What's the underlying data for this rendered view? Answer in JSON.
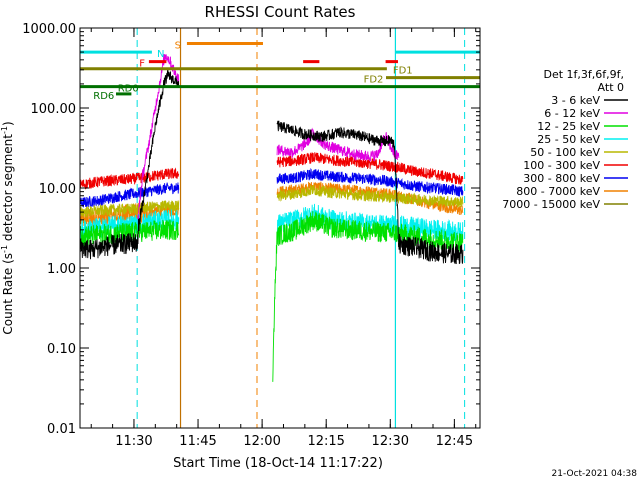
{
  "chart_data": {
    "type": "line",
    "title": "RHESSI Count Rates",
    "xlabel": "Start Time (18-Oct-14 11:17:22)",
    "ylabel_main": "Count Rate (s",
    "ylabel_sup1": "-1",
    "ylabel_mid": " detector segment",
    "ylabel_sup2": "-1",
    "ylabel_end": ")",
    "scale": "log",
    "xlim_minutes": [
      677.37,
      771.0
    ],
    "ylim": [
      0.01,
      1000
    ],
    "x_ticks": [
      {
        "label": "11:30",
        "minutes": 690
      },
      {
        "label": "11:45",
        "minutes": 705
      },
      {
        "label": "12:00",
        "minutes": 720
      },
      {
        "label": "12:15",
        "minutes": 735
      },
      {
        "label": "12:30",
        "minutes": 750
      },
      {
        "label": "12:45",
        "minutes": 765
      }
    ],
    "y_ticks": [
      {
        "label": "1000.00",
        "value": 1000
      },
      {
        "label": "100.00",
        "value": 100
      },
      {
        "label": "10.00",
        "value": 10
      },
      {
        "label": "1.00",
        "value": 1
      },
      {
        "label": "0.10",
        "value": 0.1
      },
      {
        "label": "0.01",
        "value": 0.01
      }
    ],
    "legend": {
      "header": [
        "Det 1f,3f,6f,9f,",
        "Att 0"
      ],
      "placement": "right",
      "entries": [
        {
          "label": "3 - 6 keV",
          "color": "#000000"
        },
        {
          "label": "6 - 12 keV",
          "color": "#e000e0"
        },
        {
          "label": "12 - 25 keV",
          "color": "#00e000"
        },
        {
          "label": "25 - 50 keV",
          "color": "#00f0f0"
        },
        {
          "label": "50 - 100 keV",
          "color": "#b8b800"
        },
        {
          "label": "100 - 300 keV",
          "color": "#f00000"
        },
        {
          "label": "300 - 800 keV",
          "color": "#0000f0"
        },
        {
          "label": "800 - 7000 keV",
          "color": "#f08000"
        },
        {
          "label": "7000 - 15000 keV",
          "color": "#808000"
        }
      ]
    },
    "series": [
      {
        "name": "3 - 6 keV",
        "color": "#000000",
        "segments": [
          [
            [
              677.5,
              1.8
            ],
            [
              680,
              1.7
            ],
            [
              684,
              1.9
            ],
            [
              688,
              2.0
            ],
            [
              690,
              2.1
            ],
            [
              690.8,
              2.0
            ],
            [
              691,
              3.0
            ],
            [
              693,
              13
            ],
            [
              695,
              60
            ],
            [
              697,
              200
            ],
            [
              698,
              260
            ],
            [
              699.5,
              220
            ],
            [
              700.5,
              200
            ]
          ],
          [
            [
              723.5,
              60
            ],
            [
              726,
              55
            ],
            [
              730,
              47
            ],
            [
              734,
              44
            ],
            [
              736,
              46
            ],
            [
              738,
              50
            ],
            [
              742,
              46
            ],
            [
              746,
              40
            ],
            [
              749,
              38
            ],
            [
              750,
              40
            ],
            [
              751,
              34
            ],
            [
              752,
              2.0
            ],
            [
              756,
              1.8
            ],
            [
              760,
              1.6
            ],
            [
              764,
              1.5
            ],
            [
              767,
              1.5
            ]
          ]
        ]
      },
      {
        "name": "6 - 12 keV",
        "color": "#e000e0",
        "segments": [
          [
            [
              690.8,
              3.5
            ],
            [
              692,
              14
            ],
            [
              694,
              50
            ],
            [
              696,
              200
            ],
            [
              697,
              400
            ],
            [
              697.5,
              460
            ],
            [
              698.5,
              380
            ],
            [
              699,
              330
            ],
            [
              699.5,
              280
            ],
            [
              700.5,
              230
            ]
          ],
          [
            [
              723.5,
              30
            ],
            [
              727,
              28
            ],
            [
              729,
              32
            ],
            [
              731,
              40
            ],
            [
              732,
              52
            ],
            [
              733,
              42
            ],
            [
              735,
              34
            ],
            [
              738,
              30
            ],
            [
              742,
              26
            ],
            [
              745,
              25
            ],
            [
              747,
              26
            ],
            [
              748,
              36
            ],
            [
              749,
              44
            ],
            [
              749.7,
              36
            ],
            [
              750.5,
              30
            ],
            [
              751,
              26
            ],
            [
              752,
              25
            ]
          ]
        ]
      },
      {
        "name": "12 - 25 keV",
        "color": "#00e000",
        "segments": [
          [
            [
              677.5,
              2.5
            ],
            [
              682,
              2.6
            ],
            [
              686,
              2.7
            ],
            [
              690,
              2.8
            ],
            [
              694,
              2.9
            ],
            [
              698,
              3.0
            ],
            [
              700.5,
              3.0
            ]
          ],
          [
            [
              722.5,
              0.05
            ],
            [
              723,
              0.5
            ],
            [
              723.5,
              2.5
            ],
            [
              728,
              3.0
            ],
            [
              732,
              4.0
            ],
            [
              736,
              3.2
            ],
            [
              740,
              3.0
            ],
            [
              744,
              2.9
            ],
            [
              748,
              2.8
            ],
            [
              752,
              2.7
            ],
            [
              756,
              2.5
            ],
            [
              760,
              2.3
            ],
            [
              764,
              2.2
            ],
            [
              767,
              2.1
            ]
          ]
        ]
      },
      {
        "name": "25 - 50 keV",
        "color": "#00f0f0",
        "segments": [
          [
            [
              677.5,
              3.0
            ],
            [
              682,
              3.2
            ],
            [
              686,
              3.4
            ],
            [
              690,
              3.5
            ],
            [
              694,
              3.8
            ],
            [
              698,
              4.0
            ],
            [
              700.5,
              4.0
            ]
          ],
          [
            [
              723.5,
              3.5
            ],
            [
              728,
              4.0
            ],
            [
              732,
              4.8
            ],
            [
              736,
              4.0
            ],
            [
              740,
              3.8
            ],
            [
              744,
              3.6
            ],
            [
              748,
              3.5
            ],
            [
              752,
              3.4
            ],
            [
              756,
              3.2
            ],
            [
              760,
              3.0
            ],
            [
              764,
              2.9
            ],
            [
              767,
              2.8
            ]
          ]
        ]
      },
      {
        "name": "50 - 100 keV",
        "color": "#b8b800",
        "segments": [
          [
            [
              677.5,
              5.0
            ],
            [
              682,
              5.2
            ],
            [
              686,
              5.4
            ],
            [
              690,
              5.5
            ],
            [
              694,
              5.8
            ],
            [
              698,
              6.0
            ],
            [
              700.5,
              6.0
            ]
          ],
          [
            [
              723.5,
              8.0
            ],
            [
              728,
              8.5
            ],
            [
              732,
              9.5
            ],
            [
              736,
              8.8
            ],
            [
              740,
              8.4
            ],
            [
              744,
              8.0
            ],
            [
              748,
              7.8
            ],
            [
              752,
              7.5
            ],
            [
              756,
              7.2
            ],
            [
              760,
              7.0
            ],
            [
              764,
              6.8
            ],
            [
              767,
              6.6
            ]
          ]
        ]
      },
      {
        "name": "100 - 300 keV",
        "color": "#f00000",
        "segments": [
          [
            [
              677.5,
              11.0
            ],
            [
              682,
              12.0
            ],
            [
              686,
              12.5
            ],
            [
              690,
              13.0
            ],
            [
              694,
              14.0
            ],
            [
              698,
              15.0
            ],
            [
              700.5,
              15.0
            ]
          ],
          [
            [
              723.5,
              21.0
            ],
            [
              728,
              22.0
            ],
            [
              732,
              24.0
            ],
            [
              736,
              22.5
            ],
            [
              740,
              21.5
            ],
            [
              744,
              20.5
            ],
            [
              748,
              19.5
            ],
            [
              752,
              18.0
            ],
            [
              756,
              16.0
            ],
            [
              760,
              15.0
            ],
            [
              764,
              13.5
            ],
            [
              767,
              12.5
            ]
          ]
        ]
      },
      {
        "name": "300 - 800 keV",
        "color": "#0000f0",
        "segments": [
          [
            [
              677.5,
              6.5
            ],
            [
              682,
              7.0
            ],
            [
              686,
              7.8
            ],
            [
              690,
              8.5
            ],
            [
              694,
              9.2
            ],
            [
              698,
              10.0
            ],
            [
              700.5,
              10.0
            ]
          ],
          [
            [
              723.5,
              13.0
            ],
            [
              728,
              13.5
            ],
            [
              732,
              15.0
            ],
            [
              736,
              14.0
            ],
            [
              740,
              13.5
            ],
            [
              744,
              13.0
            ],
            [
              748,
              12.5
            ],
            [
              752,
              11.5
            ],
            [
              756,
              10.5
            ],
            [
              760,
              10.0
            ],
            [
              764,
              9.5
            ],
            [
              767,
              9.0
            ]
          ]
        ]
      },
      {
        "name": "800 - 7000 keV",
        "color": "#f08000",
        "segments": [
          [
            [
              677.5,
              4.0
            ],
            [
              682,
              4.2
            ],
            [
              686,
              4.5
            ],
            [
              690,
              4.8
            ],
            [
              694,
              5.0
            ],
            [
              698,
              5.2
            ],
            [
              700.5,
              5.2
            ]
          ],
          [
            [
              723.5,
              9.0
            ],
            [
              728,
              9.5
            ],
            [
              732,
              10.5
            ],
            [
              736,
              9.8
            ],
            [
              740,
              9.5
            ],
            [
              744,
              9.2
            ],
            [
              748,
              8.8
            ],
            [
              752,
              8.0
            ],
            [
              756,
              7.0
            ],
            [
              760,
              6.2
            ],
            [
              764,
              5.6
            ],
            [
              767,
              5.2
            ]
          ]
        ]
      }
    ],
    "dashed_markers": [
      {
        "minutes": 690.75,
        "color": "#00e0e0"
      },
      {
        "minutes": 718.8,
        "color": "#f08000"
      },
      {
        "minutes": 767.4,
        "color": "#00e0e0"
      }
    ],
    "solid_markers": [
      {
        "minutes": 700.9,
        "color": "#c07000"
      },
      {
        "minutes": 751.2,
        "color": "#00e0e0"
      }
    ],
    "flags": [
      {
        "label": "N",
        "color": "#00e0e0",
        "y": 500,
        "x0": 677.4,
        "x1": 694.2,
        "label_minutes": 695.4,
        "label_side": "right"
      },
      {
        "label": "",
        "color": "#00e0e0",
        "y": 500,
        "x0": 751.2,
        "x1": 771.0
      },
      {
        "label": "S",
        "color": "#f08000",
        "y": 640,
        "x0": 702.4,
        "x1": 720.2,
        "label_minutes": 701.0,
        "label_side": "left"
      },
      {
        "label": "F",
        "color": "#f00000",
        "y": 380,
        "x0": 693.5,
        "x1": 697.6,
        "label_minutes": 692.6,
        "label_side": "left"
      },
      {
        "label": "",
        "color": "#f00000",
        "y": 380,
        "x0": 729.6,
        "x1": 733.4
      },
      {
        "label": "",
        "color": "#f00000",
        "y": 380,
        "x0": 748.9,
        "x1": 751.8
      },
      {
        "label": "FD1",
        "color": "#808000",
        "y": 310,
        "x0": 677.4,
        "x1": 749.2,
        "label_minutes": 750.6,
        "label_side": "right"
      },
      {
        "label": "FD2",
        "color": "#808000",
        "y": 240,
        "x0": 749.0,
        "x1": 771.0,
        "label_minutes": 748.4,
        "label_side": "left"
      },
      {
        "label": "RD0",
        "color": "#007000",
        "y": 185,
        "x0": 677.4,
        "x1": 771.0,
        "label_minutes": 686.2,
        "label_side": "right"
      },
      {
        "label": "RD6",
        "color": "#007000",
        "y": 150,
        "x0": 685.8,
        "x1": 689.4,
        "label_minutes": 685.4,
        "label_side": "left"
      }
    ],
    "footer_timestamp": "21-Oct-2021 04:38"
  }
}
